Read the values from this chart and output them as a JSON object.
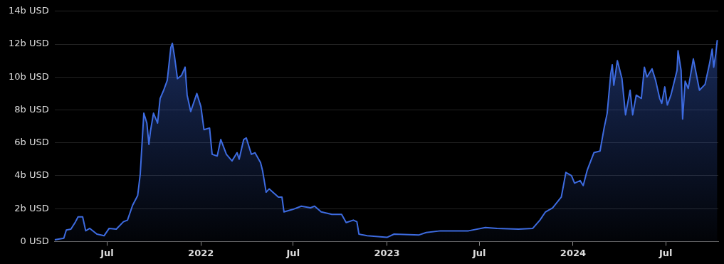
{
  "chart_data": {
    "type": "area",
    "color": "#3d6be0",
    "grid": "y",
    "legend": false,
    "marker": "none",
    "xlim": [
      "2021-03-20",
      "2024-10-12"
    ],
    "xticks": [
      {
        "value": "2021-07-01",
        "label": "Jul"
      },
      {
        "value": "2022-01-01",
        "label": "2022"
      },
      {
        "value": "2022-07-01",
        "label": "Jul"
      },
      {
        "value": "2023-01-01",
        "label": "2023"
      },
      {
        "value": "2023-07-01",
        "label": "Jul"
      },
      {
        "value": "2024-01-01",
        "label": "2024"
      },
      {
        "value": "2024-07-01",
        "label": "Jul"
      }
    ],
    "ylim": [
      0,
      14
    ],
    "yticks": [
      {
        "value": 0,
        "label": "0 USD"
      },
      {
        "value": 2,
        "label": "2b USD"
      },
      {
        "value": 4,
        "label": "4b USD"
      },
      {
        "value": 6,
        "label": "6b USD"
      },
      {
        "value": 8,
        "label": "8b USD"
      },
      {
        "value": 10,
        "label": "10b USD"
      },
      {
        "value": 12,
        "label": "12b USD"
      },
      {
        "value": 14,
        "label": "14b USD"
      }
    ],
    "x": [
      "2021-03-20",
      "2021-04-07",
      "2021-04-12",
      "2021-04-21",
      "2021-04-30",
      "2021-05-05",
      "2021-05-14",
      "2021-05-20",
      "2021-05-28",
      "2021-06-11",
      "2021-06-25",
      "2021-07-05",
      "2021-07-19",
      "2021-08-02",
      "2021-08-10",
      "2021-08-20",
      "2021-08-30",
      "2021-09-04",
      "2021-09-11",
      "2021-09-17",
      "2021-09-21",
      "2021-09-24",
      "2021-09-30",
      "2021-10-08",
      "2021-10-13",
      "2021-10-20",
      "2021-10-27",
      "2021-11-03",
      "2021-11-06",
      "2021-11-10",
      "2021-11-16",
      "2021-11-24",
      "2021-12-01",
      "2021-12-05",
      "2021-12-12",
      "2021-12-24",
      "2022-01-01",
      "2022-01-07",
      "2022-01-18",
      "2022-01-23",
      "2022-02-02",
      "2022-02-09",
      "2022-02-20",
      "2022-03-03",
      "2022-03-13",
      "2022-03-17",
      "2022-03-26",
      "2022-03-31",
      "2022-04-10",
      "2022-04-17",
      "2022-04-28",
      "2022-05-02",
      "2022-05-09",
      "2022-05-15",
      "2022-06-02",
      "2022-06-09",
      "2022-06-13",
      "2022-06-30",
      "2022-07-17",
      "2022-08-04",
      "2022-08-12",
      "2022-08-25",
      "2022-09-15",
      "2022-10-04",
      "2022-10-13",
      "2022-10-27",
      "2022-11-03",
      "2022-11-07",
      "2022-11-23",
      "2023-01-01",
      "2023-01-15",
      "2023-03-05",
      "2023-03-19",
      "2023-04-16",
      "2023-06-10",
      "2023-07-13",
      "2023-08-05",
      "2023-09-16",
      "2023-10-14",
      "2023-10-28",
      "2023-11-08",
      "2023-11-22",
      "2023-12-09",
      "2023-12-18",
      "2023-12-29",
      "2024-01-04",
      "2024-01-15",
      "2024-01-21",
      "2024-01-29",
      "2024-02-11",
      "2024-02-23",
      "2024-03-02",
      "2024-03-08",
      "2024-03-15",
      "2024-03-18",
      "2024-03-21",
      "2024-03-28",
      "2024-04-06",
      "2024-04-13",
      "2024-04-22",
      "2024-04-27",
      "2024-05-04",
      "2024-05-14",
      "2024-05-20",
      "2024-05-25",
      "2024-06-04",
      "2024-06-11",
      "2024-06-19",
      "2024-06-23",
      "2024-06-29",
      "2024-07-04",
      "2024-07-11",
      "2024-07-23",
      "2024-07-25",
      "2024-07-31",
      "2024-08-03",
      "2024-08-08",
      "2024-08-14",
      "2024-08-24",
      "2024-09-05",
      "2024-09-16",
      "2024-09-25",
      "2024-09-30",
      "2024-10-03",
      "2024-10-07",
      "2024-10-10"
    ],
    "values": [
      0.1,
      0.2,
      0.7,
      0.75,
      1.2,
      1.5,
      1.5,
      0.65,
      0.8,
      0.45,
      0.35,
      0.8,
      0.75,
      1.2,
      1.3,
      2.2,
      2.8,
      4.1,
      7.8,
      7.2,
      5.9,
      6.7,
      7.8,
      7.2,
      8.7,
      9.2,
      9.8,
      11.8,
      12.05,
      11.3,
      9.9,
      10.1,
      10.6,
      8.9,
      7.9,
      9.0,
      8.2,
      6.8,
      6.9,
      5.3,
      5.2,
      6.2,
      5.3,
      4.9,
      5.4,
      5.0,
      6.2,
      6.3,
      5.3,
      5.4,
      4.8,
      4.3,
      3.0,
      3.2,
      2.7,
      2.7,
      1.8,
      1.95,
      2.15,
      2.05,
      2.15,
      1.8,
      1.65,
      1.65,
      1.15,
      1.3,
      1.2,
      0.45,
      0.35,
      0.25,
      0.45,
      0.4,
      0.55,
      0.65,
      0.65,
      0.85,
      0.8,
      0.75,
      0.8,
      1.3,
      1.8,
      2.05,
      2.7,
      4.2,
      4.0,
      3.55,
      3.7,
      3.4,
      4.35,
      5.4,
      5.5,
      6.9,
      7.8,
      10.2,
      10.75,
      9.5,
      11.0,
      9.9,
      7.7,
      9.2,
      7.7,
      8.9,
      8.7,
      10.6,
      10.0,
      10.5,
      9.8,
      8.7,
      8.4,
      9.4,
      8.3,
      8.9,
      10.4,
      11.6,
      10.4,
      7.45,
      9.75,
      9.3,
      11.1,
      9.2,
      9.55,
      10.85,
      11.7,
      10.6,
      11.4,
      12.25
    ]
  }
}
